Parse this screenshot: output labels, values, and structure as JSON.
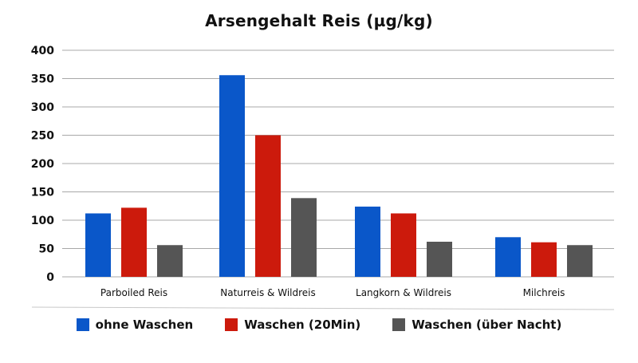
{
  "chart_data": {
    "type": "bar",
    "title": "Arsengehalt Reis (µg/kg)",
    "xlabel": "",
    "ylabel": "",
    "categories": [
      "Parboiled Reis",
      "Naturreis & Wildreis",
      "Langkorn & Wildreis",
      "Milchreis"
    ],
    "series": [
      {
        "name": "ohne Waschen",
        "color": "#0a57c9",
        "values": [
          112,
          356,
          124,
          70
        ]
      },
      {
        "name": "Waschen (20Min)",
        "color": "#cc1a0c",
        "values": [
          122,
          250,
          112,
          61
        ]
      },
      {
        "name": "Waschen (über Nacht)",
        "color": "#555555",
        "values": [
          56,
          139,
          62,
          56
        ]
      }
    ],
    "ylim": [
      0,
      400
    ],
    "yticks": [
      0,
      50,
      100,
      150,
      200,
      250,
      300,
      350,
      400
    ],
    "grid": true,
    "legend_position": "bottom"
  }
}
